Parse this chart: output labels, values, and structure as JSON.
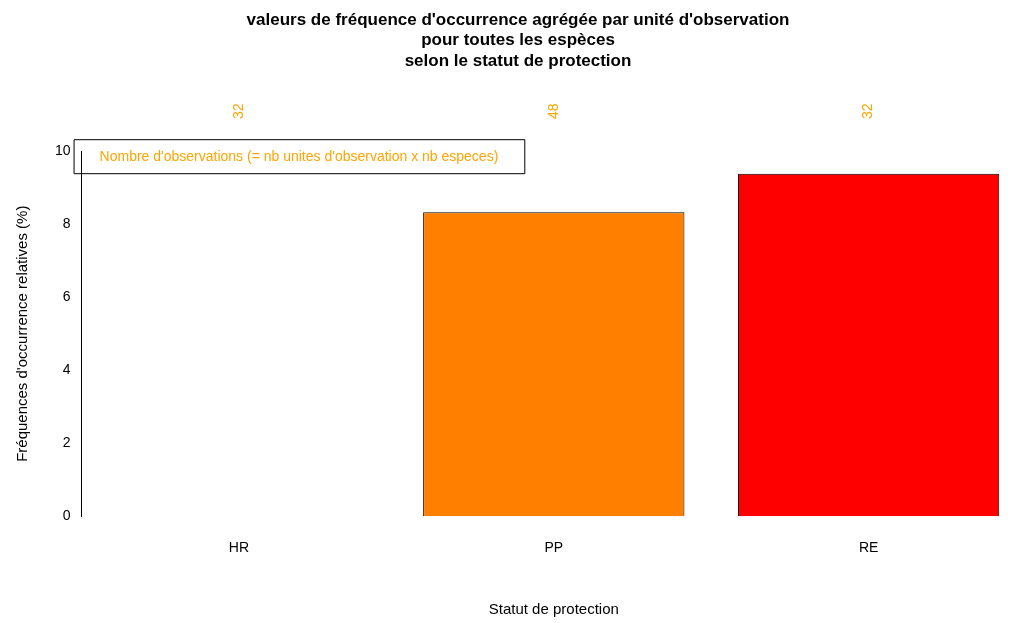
{
  "chart_data": {
    "type": "bar",
    "title": "valeurs de fréquence d'occurrence agrégée par unité d'observation\npour toutes les espèces\nselon le statut de protection",
    "xlabel": "Statut de protection",
    "ylabel": "Fréquences d'occurrence relatives (%)",
    "categories": [
      "HR",
      "PP",
      "RE"
    ],
    "values": [
      0,
      8.33,
      9.38
    ],
    "colors": [
      "#ffffff",
      "#ff8000",
      "#ff0000"
    ],
    "ylim": [
      0,
      10
    ],
    "yticks": [
      0,
      2,
      4,
      6,
      8,
      10
    ],
    "grid": false,
    "legend": false,
    "annotations": [
      "Nombre d'observations (= nb unites d'observation x nb especes)",
      "32",
      "48",
      "32"
    ]
  }
}
